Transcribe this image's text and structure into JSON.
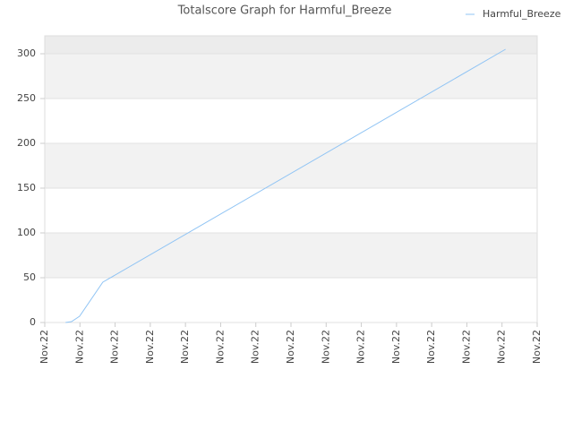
{
  "chart_data": {
    "type": "line",
    "title": "Totalscore Graph for Harmful_Breeze",
    "x": [
      0.59,
      0.76,
      0.99,
      1.65,
      13.1
    ],
    "series": [
      {
        "name": "Harmful_Breeze",
        "color": "#90c4f4",
        "values": [
          0,
          1,
          7,
          45,
          305
        ]
      }
    ],
    "xlim": [
      0,
      14
    ],
    "xticks": [
      {
        "value": 0,
        "label": "Nov.22"
      },
      {
        "value": 1,
        "label": "Nov.22"
      },
      {
        "value": 2,
        "label": "Nov.22"
      },
      {
        "value": 3,
        "label": "Nov.22"
      },
      {
        "value": 4,
        "label": "Nov.22"
      },
      {
        "value": 5,
        "label": "Nov.22"
      },
      {
        "value": 6,
        "label": "Nov.22"
      },
      {
        "value": 7,
        "label": "Nov.22"
      },
      {
        "value": 8,
        "label": "Nov.22"
      },
      {
        "value": 9,
        "label": "Nov.22"
      },
      {
        "value": 10,
        "label": "Nov.22"
      },
      {
        "value": 11,
        "label": "Nov.22"
      },
      {
        "value": 12,
        "label": "Nov.22"
      },
      {
        "value": 13,
        "label": "Nov.22"
      },
      {
        "value": 14,
        "label": "Nov.22"
      }
    ],
    "ylim": [
      0,
      320
    ],
    "yticks": [
      0,
      50,
      100,
      150,
      200,
      250,
      300
    ],
    "grid": true,
    "legend": "top-right"
  }
}
